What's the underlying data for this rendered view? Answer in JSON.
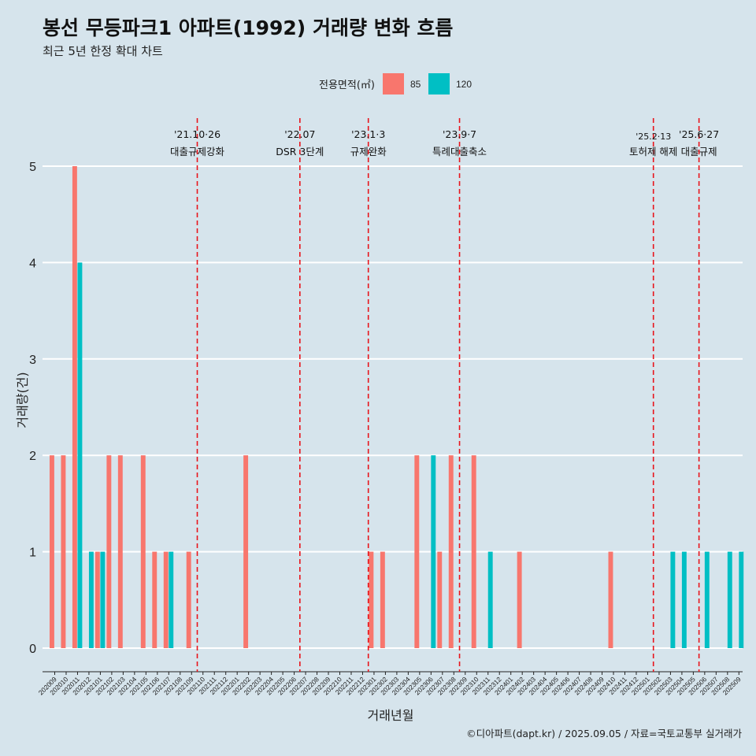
{
  "header": {
    "title": "봉선 무등파크1 아파트(1992) 거래량 변화 흐름",
    "subtitle": "최근 5년 한정 확대 차트"
  },
  "legend": {
    "title": "전용면적(㎡)",
    "items": [
      {
        "label": "85",
        "color": "#f8766d"
      },
      {
        "label": "120",
        "color": "#00bfc4"
      }
    ]
  },
  "caption": "©디아파트(dapt.kr) / 2025.09.05 / 자료=국토교통부 실거래가",
  "chart_data": {
    "type": "bar",
    "xlabel": "거래년월",
    "ylabel": "거래량(건)",
    "ylim": [
      0,
      5
    ],
    "yticks": [
      0,
      1,
      2,
      3,
      4,
      5
    ],
    "grid": true,
    "legend_position": "top",
    "categories": [
      "202009",
      "202010",
      "202011",
      "202012",
      "202101",
      "202102",
      "202103",
      "202104",
      "202105",
      "202106",
      "202107",
      "202108",
      "202109",
      "202110",
      "202111",
      "202112",
      "202201",
      "202202",
      "202203",
      "202204",
      "202205",
      "202206",
      "202207",
      "202208",
      "202209",
      "202210",
      "202211",
      "202212",
      "202301",
      "202302",
      "202303",
      "202304",
      "202305",
      "202306",
      "202307",
      "202308",
      "202309",
      "202310",
      "202311",
      "202312",
      "202401",
      "202402",
      "202403",
      "202404",
      "202405",
      "202406",
      "202407",
      "202408",
      "202409",
      "202410",
      "202411",
      "202412",
      "202501",
      "202502",
      "202503",
      "202504",
      "202505",
      "202506",
      "202507",
      "202508",
      "202509"
    ],
    "series": [
      {
        "name": "85",
        "color": "#f8766d",
        "values": [
          2,
          2,
          5,
          0,
          1,
          2,
          2,
          0,
          2,
          1,
          1,
          0,
          1,
          0,
          0,
          0,
          0,
          2,
          0,
          0,
          0,
          0,
          0,
          0,
          0,
          0,
          0,
          0,
          1,
          1,
          0,
          0,
          2,
          0,
          1,
          2,
          0,
          2,
          0,
          0,
          0,
          1,
          0,
          0,
          0,
          0,
          0,
          0,
          0,
          1,
          0,
          0,
          0,
          0,
          0,
          0,
          0,
          0,
          0,
          0,
          0
        ]
      },
      {
        "name": "120",
        "color": "#00bfc4",
        "values": [
          0,
          0,
          4,
          1,
          1,
          0,
          0,
          0,
          0,
          0,
          1,
          0,
          0,
          0,
          0,
          0,
          0,
          0,
          0,
          0,
          0,
          0,
          0,
          0,
          0,
          0,
          0,
          0,
          0,
          0,
          0,
          0,
          0,
          2,
          0,
          0,
          0,
          0,
          1,
          0,
          0,
          0,
          0,
          0,
          0,
          0,
          0,
          0,
          0,
          0,
          0,
          0,
          0,
          0,
          1,
          1,
          0,
          1,
          0,
          1,
          1
        ]
      }
    ],
    "events": [
      {
        "x": "202110",
        "date": "'21.10·26",
        "label": "대출규제강화"
      },
      {
        "x": "202207",
        "date": "'22.07",
        "label": "DSR 3단계"
      },
      {
        "x": "202301",
        "date": "'23.1·3",
        "label": "규제완화"
      },
      {
        "x": "202309",
        "date": "'23.9·7",
        "label": "특례대출축소"
      },
      {
        "x": "202502",
        "date": "'25.2·13",
        "label": "토허제 해제"
      },
      {
        "x": "202506",
        "date": "'25.6·27",
        "label": "대출규제"
      }
    ]
  }
}
